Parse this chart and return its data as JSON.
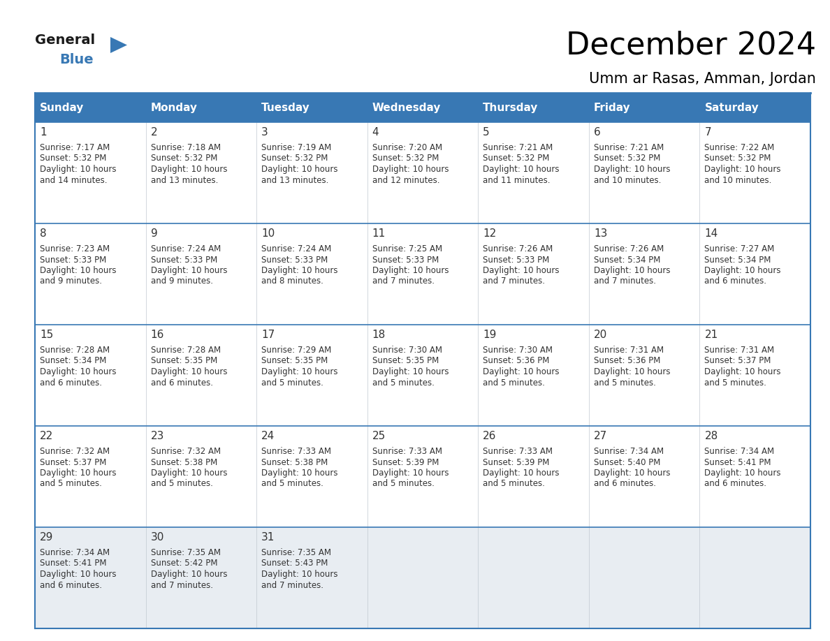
{
  "title": "December 2024",
  "subtitle": "Umm ar Rasas, Amman, Jordan",
  "header_bg_color": "#3878b4",
  "header_text_color": "#ffffff",
  "row_bg_white": "#ffffff",
  "row_bg_gray": "#e8edf2",
  "border_color": "#3878b4",
  "sep_color": "#3878b4",
  "text_color": "#333333",
  "days_of_week": [
    "Sunday",
    "Monday",
    "Tuesday",
    "Wednesday",
    "Thursday",
    "Friday",
    "Saturday"
  ],
  "weeks": [
    [
      {
        "day": 1,
        "sunrise": "7:17 AM",
        "sunset": "5:32 PM",
        "daylight_h": "10 hours",
        "daylight_m": "and 14 minutes."
      },
      {
        "day": 2,
        "sunrise": "7:18 AM",
        "sunset": "5:32 PM",
        "daylight_h": "10 hours",
        "daylight_m": "and 13 minutes."
      },
      {
        "day": 3,
        "sunrise": "7:19 AM",
        "sunset": "5:32 PM",
        "daylight_h": "10 hours",
        "daylight_m": "and 13 minutes."
      },
      {
        "day": 4,
        "sunrise": "7:20 AM",
        "sunset": "5:32 PM",
        "daylight_h": "10 hours",
        "daylight_m": "and 12 minutes."
      },
      {
        "day": 5,
        "sunrise": "7:21 AM",
        "sunset": "5:32 PM",
        "daylight_h": "10 hours",
        "daylight_m": "and 11 minutes."
      },
      {
        "day": 6,
        "sunrise": "7:21 AM",
        "sunset": "5:32 PM",
        "daylight_h": "10 hours",
        "daylight_m": "and 10 minutes."
      },
      {
        "day": 7,
        "sunrise": "7:22 AM",
        "sunset": "5:32 PM",
        "daylight_h": "10 hours",
        "daylight_m": "and 10 minutes."
      }
    ],
    [
      {
        "day": 8,
        "sunrise": "7:23 AM",
        "sunset": "5:33 PM",
        "daylight_h": "10 hours",
        "daylight_m": "and 9 minutes."
      },
      {
        "day": 9,
        "sunrise": "7:24 AM",
        "sunset": "5:33 PM",
        "daylight_h": "10 hours",
        "daylight_m": "and 9 minutes."
      },
      {
        "day": 10,
        "sunrise": "7:24 AM",
        "sunset": "5:33 PM",
        "daylight_h": "10 hours",
        "daylight_m": "and 8 minutes."
      },
      {
        "day": 11,
        "sunrise": "7:25 AM",
        "sunset": "5:33 PM",
        "daylight_h": "10 hours",
        "daylight_m": "and 7 minutes."
      },
      {
        "day": 12,
        "sunrise": "7:26 AM",
        "sunset": "5:33 PM",
        "daylight_h": "10 hours",
        "daylight_m": "and 7 minutes."
      },
      {
        "day": 13,
        "sunrise": "7:26 AM",
        "sunset": "5:34 PM",
        "daylight_h": "10 hours",
        "daylight_m": "and 7 minutes."
      },
      {
        "day": 14,
        "sunrise": "7:27 AM",
        "sunset": "5:34 PM",
        "daylight_h": "10 hours",
        "daylight_m": "and 6 minutes."
      }
    ],
    [
      {
        "day": 15,
        "sunrise": "7:28 AM",
        "sunset": "5:34 PM",
        "daylight_h": "10 hours",
        "daylight_m": "and 6 minutes."
      },
      {
        "day": 16,
        "sunrise": "7:28 AM",
        "sunset": "5:35 PM",
        "daylight_h": "10 hours",
        "daylight_m": "and 6 minutes."
      },
      {
        "day": 17,
        "sunrise": "7:29 AM",
        "sunset": "5:35 PM",
        "daylight_h": "10 hours",
        "daylight_m": "and 5 minutes."
      },
      {
        "day": 18,
        "sunrise": "7:30 AM",
        "sunset": "5:35 PM",
        "daylight_h": "10 hours",
        "daylight_m": "and 5 minutes."
      },
      {
        "day": 19,
        "sunrise": "7:30 AM",
        "sunset": "5:36 PM",
        "daylight_h": "10 hours",
        "daylight_m": "and 5 minutes."
      },
      {
        "day": 20,
        "sunrise": "7:31 AM",
        "sunset": "5:36 PM",
        "daylight_h": "10 hours",
        "daylight_m": "and 5 minutes."
      },
      {
        "day": 21,
        "sunrise": "7:31 AM",
        "sunset": "5:37 PM",
        "daylight_h": "10 hours",
        "daylight_m": "and 5 minutes."
      }
    ],
    [
      {
        "day": 22,
        "sunrise": "7:32 AM",
        "sunset": "5:37 PM",
        "daylight_h": "10 hours",
        "daylight_m": "and 5 minutes."
      },
      {
        "day": 23,
        "sunrise": "7:32 AM",
        "sunset": "5:38 PM",
        "daylight_h": "10 hours",
        "daylight_m": "and 5 minutes."
      },
      {
        "day": 24,
        "sunrise": "7:33 AM",
        "sunset": "5:38 PM",
        "daylight_h": "10 hours",
        "daylight_m": "and 5 minutes."
      },
      {
        "day": 25,
        "sunrise": "7:33 AM",
        "sunset": "5:39 PM",
        "daylight_h": "10 hours",
        "daylight_m": "and 5 minutes."
      },
      {
        "day": 26,
        "sunrise": "7:33 AM",
        "sunset": "5:39 PM",
        "daylight_h": "10 hours",
        "daylight_m": "and 5 minutes."
      },
      {
        "day": 27,
        "sunrise": "7:34 AM",
        "sunset": "5:40 PM",
        "daylight_h": "10 hours",
        "daylight_m": "and 6 minutes."
      },
      {
        "day": 28,
        "sunrise": "7:34 AM",
        "sunset": "5:41 PM",
        "daylight_h": "10 hours",
        "daylight_m": "and 6 minutes."
      }
    ],
    [
      {
        "day": 29,
        "sunrise": "7:34 AM",
        "sunset": "5:41 PM",
        "daylight_h": "10 hours",
        "daylight_m": "and 6 minutes."
      },
      {
        "day": 30,
        "sunrise": "7:35 AM",
        "sunset": "5:42 PM",
        "daylight_h": "10 hours",
        "daylight_m": "and 7 minutes."
      },
      {
        "day": 31,
        "sunrise": "7:35 AM",
        "sunset": "5:43 PM",
        "daylight_h": "10 hours",
        "daylight_m": "and 7 minutes."
      },
      null,
      null,
      null,
      null
    ]
  ],
  "logo_color1": "#1a1a1a",
  "logo_color2": "#3878b4",
  "logo_triangle_color": "#3878b4",
  "title_fontsize": 32,
  "subtitle_fontsize": 15,
  "header_fontsize": 11,
  "day_num_fontsize": 11,
  "cell_text_fontsize": 8.5
}
